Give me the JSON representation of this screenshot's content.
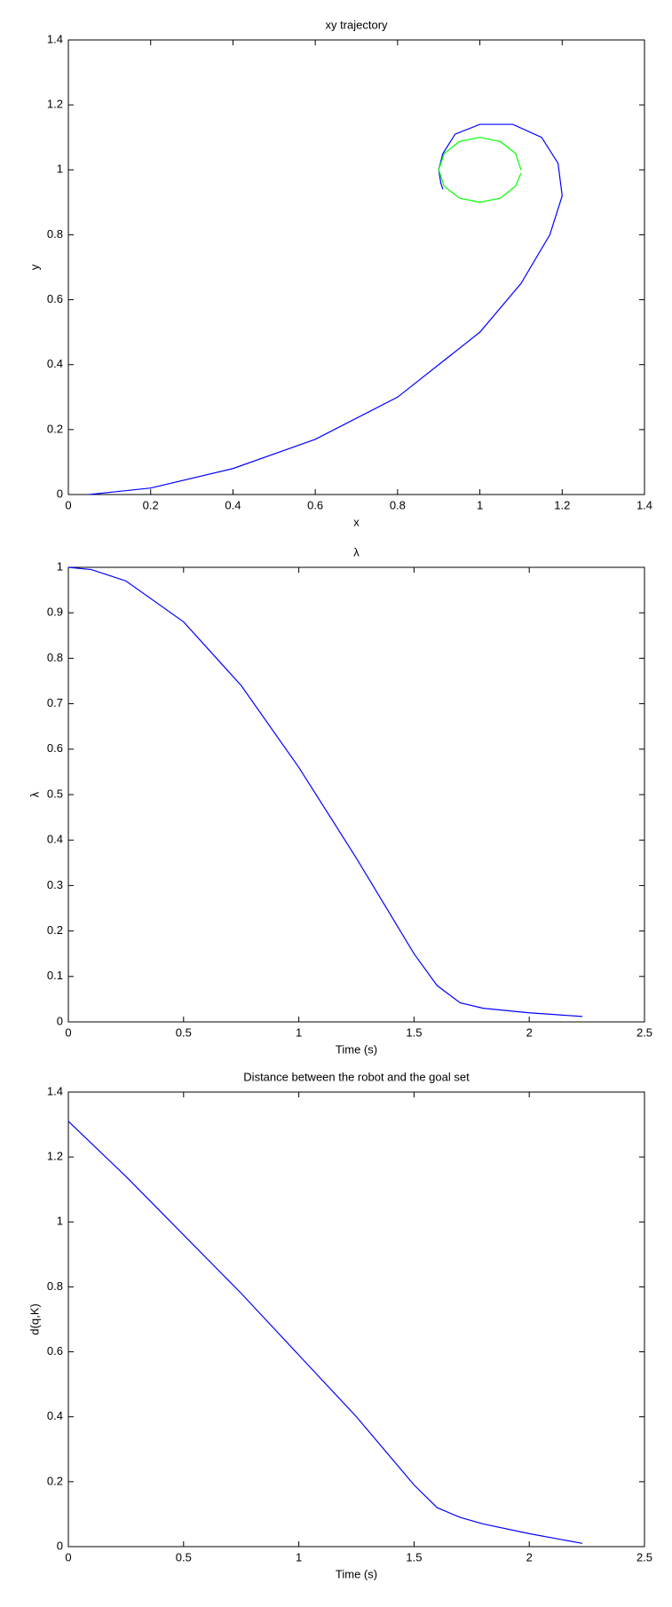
{
  "chart_data": [
    {
      "type": "line",
      "title": "xy trajectory",
      "xlabel": "x",
      "ylabel": "y",
      "xlim": [
        0,
        1.4
      ],
      "ylim": [
        0,
        1.4
      ],
      "xticks": [
        0,
        0.2,
        0.4,
        0.6,
        0.8,
        1,
        1.2,
        1.4
      ],
      "yticks": [
        0,
        0.2,
        0.4,
        0.6,
        0.8,
        1,
        1.2,
        1.4
      ],
      "series": [
        {
          "color": "#0000ff",
          "x": [
            0.05,
            0.2,
            0.4,
            0.6,
            0.8,
            1.0,
            1.1,
            1.17,
            1.2,
            1.19,
            1.15,
            1.08,
            1.0,
            0.94,
            0.91,
            0.9,
            0.905,
            0.91
          ],
          "values": [
            0,
            0.02,
            0.08,
            0.17,
            0.3,
            0.5,
            0.65,
            0.8,
            0.92,
            1.02,
            1.1,
            1.14,
            1.14,
            1.11,
            1.05,
            1.0,
            0.96,
            0.94
          ]
        },
        {
          "color": "#00ff00",
          "x": [
            1.1,
            1.087,
            1.05,
            1.0,
            0.95,
            0.913,
            0.9,
            0.913,
            0.95,
            1.0,
            1.05,
            1.087,
            1.1
          ],
          "values": [
            1.0,
            1.05,
            1.087,
            1.1,
            1.087,
            1.05,
            1.0,
            0.95,
            0.913,
            0.9,
            0.913,
            0.95,
            0.99
          ]
        }
      ]
    },
    {
      "type": "line",
      "title": "λ",
      "xlabel": "Time (s)",
      "ylabel": "λ",
      "xlim": [
        0,
        2.5
      ],
      "ylim": [
        0,
        1
      ],
      "xticks": [
        0,
        0.5,
        1,
        1.5,
        2,
        2.5
      ],
      "yticks": [
        0,
        0.1,
        0.2,
        0.3,
        0.4,
        0.5,
        0.6,
        0.7,
        0.8,
        0.9,
        1
      ],
      "series": [
        {
          "color": "#0000ff",
          "x": [
            0,
            0.1,
            0.25,
            0.5,
            0.75,
            1.0,
            1.25,
            1.5,
            1.6,
            1.7,
            1.8,
            2.0,
            2.23
          ],
          "values": [
            1,
            0.995,
            0.97,
            0.88,
            0.74,
            0.56,
            0.36,
            0.15,
            0.08,
            0.042,
            0.03,
            0.02,
            0.012
          ]
        }
      ]
    },
    {
      "type": "line",
      "title": "Distance between the robot and the goal set",
      "xlabel": "Time (s)",
      "ylabel": "d(q,K)",
      "xlim": [
        0,
        2.5
      ],
      "ylim": [
        0,
        1.4
      ],
      "xticks": [
        0,
        0.5,
        1,
        1.5,
        2,
        2.5
      ],
      "yticks": [
        0,
        0.2,
        0.4,
        0.6,
        0.8,
        1,
        1.2,
        1.4
      ],
      "series": [
        {
          "color": "#0000ff",
          "x": [
            0,
            0.25,
            0.5,
            0.75,
            1.0,
            1.25,
            1.5,
            1.6,
            1.7,
            1.8,
            2.0,
            2.23
          ],
          "values": [
            1.31,
            1.14,
            0.96,
            0.78,
            0.59,
            0.4,
            0.19,
            0.12,
            0.09,
            0.07,
            0.04,
            0.01
          ]
        }
      ]
    }
  ]
}
